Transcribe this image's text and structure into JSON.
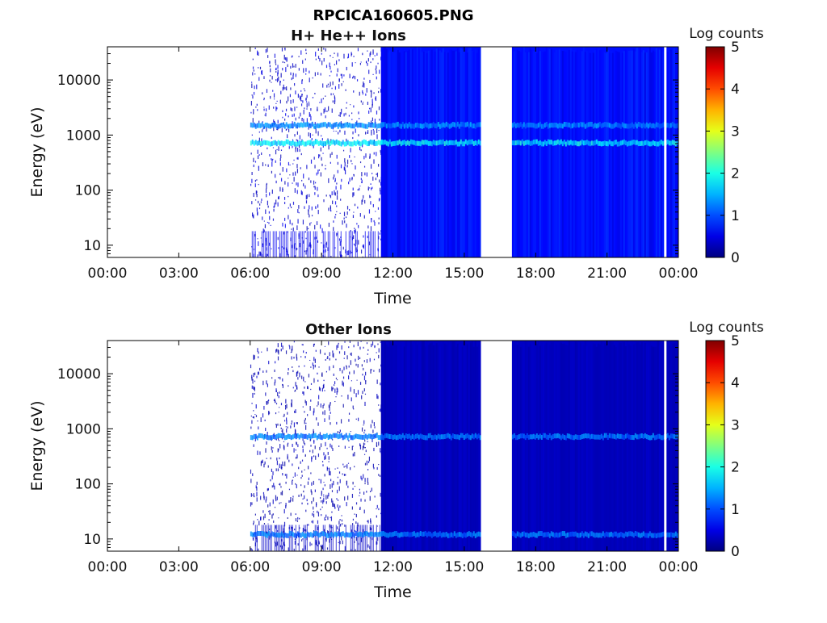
{
  "figure": {
    "title": "RPCICA160605.PNG"
  },
  "colors": {
    "background": "#ffffff",
    "axis": "#000000",
    "text": "#111111"
  },
  "chart_data": [
    {
      "type": "heatmap",
      "title": "H+ He++ Ions",
      "xlabel": "Time",
      "ylabel": "Energy (eV)",
      "x_range_hours": [
        0,
        24
      ],
      "x_ticks": [
        "00:00",
        "03:00",
        "06:00",
        "09:00",
        "12:00",
        "15:00",
        "18:00",
        "21:00",
        "00:00"
      ],
      "y_scale": "log",
      "y_range": [
        6,
        40000
      ],
      "y_ticks": [
        "10",
        "100",
        "1000",
        "10000"
      ],
      "y_tick_values": [
        10,
        100,
        1000,
        10000
      ],
      "colorbar": {
        "label": "Log counts",
        "range": [
          0,
          5
        ],
        "ticks": [
          "0",
          "1",
          "2",
          "3",
          "4",
          "5"
        ],
        "colormap": "jet"
      },
      "data_intervals_hours": [
        {
          "start": 6.0,
          "end": 11.5,
          "level": 0.6,
          "density": "sparse"
        },
        {
          "start": 11.5,
          "end": 15.7,
          "level": 1.0,
          "density": "dense"
        },
        {
          "start": 17.0,
          "end": 24.0,
          "level": 1.0,
          "density": "dense"
        }
      ],
      "gaps_hours": [
        {
          "start": 0.0,
          "end": 6.0
        },
        {
          "start": 15.7,
          "end": 17.0
        },
        {
          "start": 23.4,
          "end": 23.5
        }
      ],
      "bands_eV": [
        {
          "energy": 720,
          "level": 1.9
        },
        {
          "energy": 1500,
          "level": 1.4
        }
      ]
    },
    {
      "type": "heatmap",
      "title": "Other Ions",
      "xlabel": "Time",
      "ylabel": "Energy (eV)",
      "x_range_hours": [
        0,
        24
      ],
      "x_ticks": [
        "00:00",
        "03:00",
        "06:00",
        "09:00",
        "12:00",
        "15:00",
        "18:00",
        "21:00",
        "00:00"
      ],
      "y_scale": "log",
      "y_range": [
        6,
        40000
      ],
      "y_ticks": [
        "10",
        "100",
        "1000",
        "10000"
      ],
      "y_tick_values": [
        10,
        100,
        1000,
        10000
      ],
      "colorbar": {
        "label": "Log counts",
        "range": [
          0,
          5
        ],
        "ticks": [
          "0",
          "1",
          "2",
          "3",
          "4",
          "5"
        ],
        "colormap": "jet"
      },
      "data_intervals_hours": [
        {
          "start": 6.0,
          "end": 11.5,
          "level": 0.4,
          "density": "sparse"
        },
        {
          "start": 11.5,
          "end": 15.7,
          "level": 0.4,
          "density": "dense"
        },
        {
          "start": 17.0,
          "end": 24.0,
          "level": 0.4,
          "density": "dense"
        }
      ],
      "gaps_hours": [
        {
          "start": 0.0,
          "end": 6.0
        },
        {
          "start": 15.7,
          "end": 17.0
        },
        {
          "start": 23.4,
          "end": 23.5
        }
      ],
      "bands_eV": [
        {
          "energy": 720,
          "level": 1.3
        },
        {
          "energy": 12,
          "level": 1.3
        }
      ]
    }
  ]
}
